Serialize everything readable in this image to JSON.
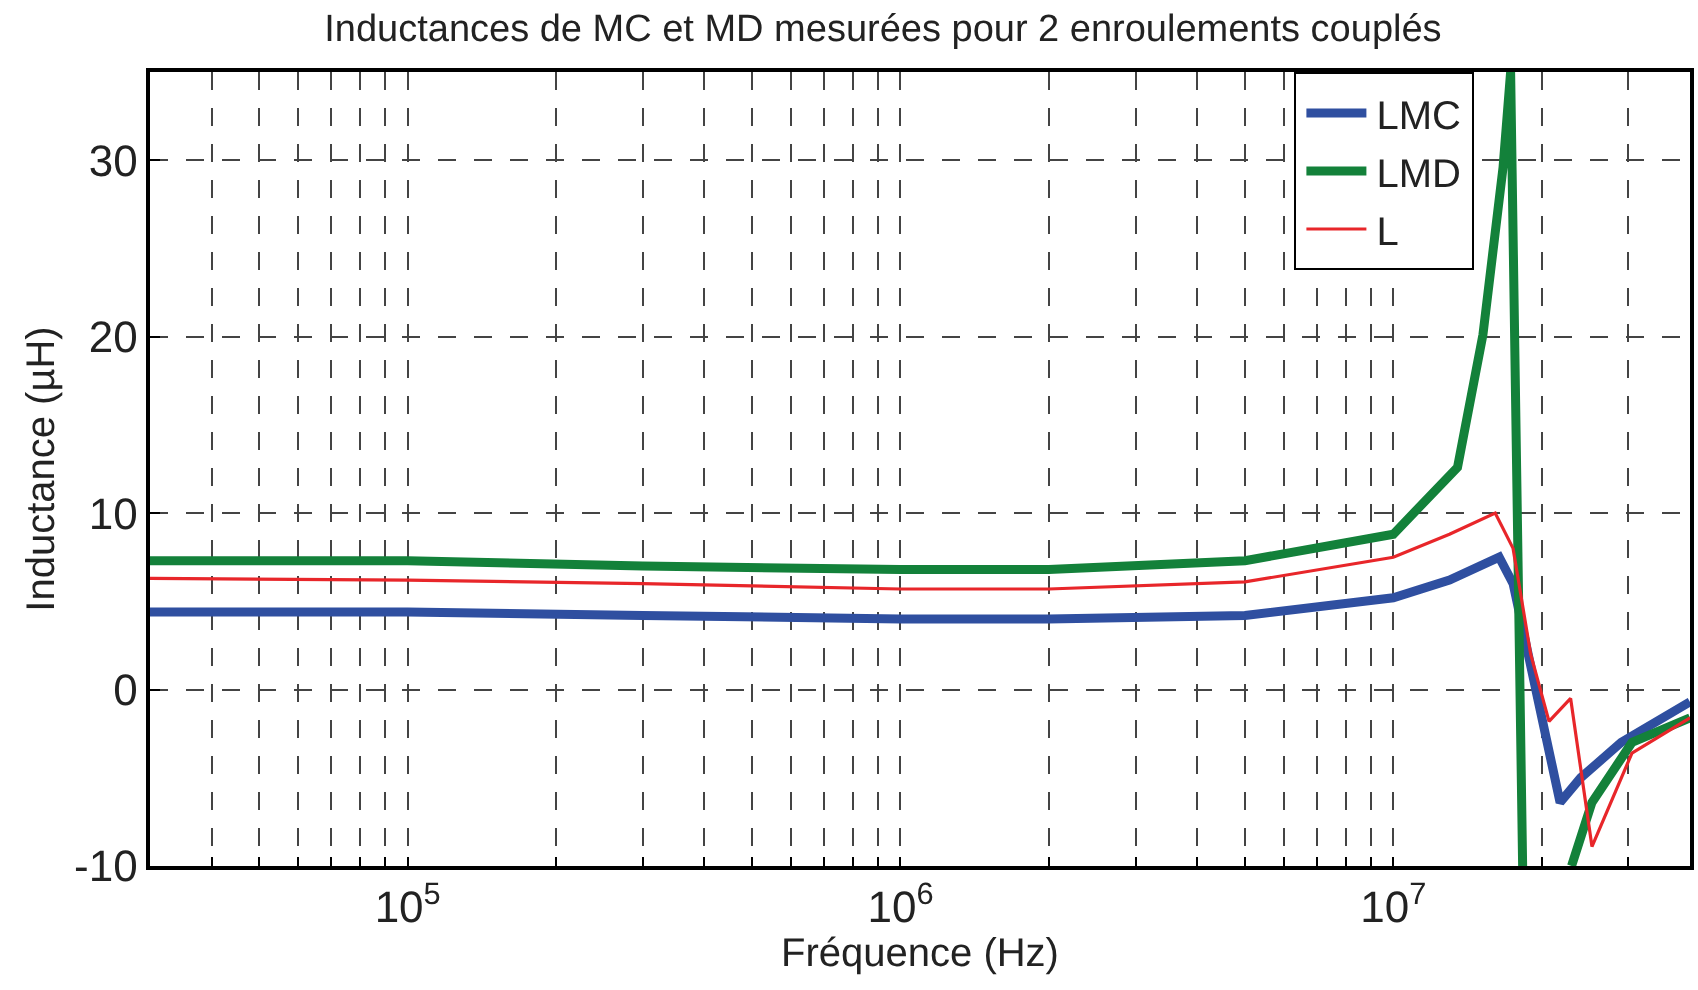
{
  "chart_data": {
    "type": "line",
    "title": "Inductances de MC et MD mesurées pour 2 enroulements couplés",
    "xlabel": "Fréquence (Hz)",
    "ylabel": "Inductance (µH)",
    "log": "x",
    "xlim": [
      30000,
      40000000
    ],
    "ylim": [
      -10,
      35
    ],
    "xticks": [
      {
        "value": 40000,
        "label": null
      },
      {
        "value": 50000,
        "label": null
      },
      {
        "value": 60000,
        "label": null
      },
      {
        "value": 70000,
        "label": null
      },
      {
        "value": 80000,
        "label": null
      },
      {
        "value": 90000,
        "label": null
      },
      {
        "value": 100000,
        "label": "10$^{5}$"
      },
      {
        "value": 200000,
        "label": null
      },
      {
        "value": 300000,
        "label": null
      },
      {
        "value": 400000,
        "label": null
      },
      {
        "value": 500000,
        "label": null
      },
      {
        "value": 600000,
        "label": null
      },
      {
        "value": 700000,
        "label": null
      },
      {
        "value": 800000,
        "label": null
      },
      {
        "value": 900000,
        "label": null
      },
      {
        "value": 1000000,
        "label": "10$^{6}$"
      },
      {
        "value": 2000000,
        "label": null
      },
      {
        "value": 3000000,
        "label": null
      },
      {
        "value": 4000000,
        "label": null
      },
      {
        "value": 5000000,
        "label": null
      },
      {
        "value": 6000000,
        "label": null
      },
      {
        "value": 7000000,
        "label": null
      },
      {
        "value": 8000000,
        "label": null
      },
      {
        "value": 9000000,
        "label": null
      },
      {
        "value": 10000000,
        "label": "10$^{7}$"
      },
      {
        "value": 20000000,
        "label": null
      },
      {
        "value": 30000000,
        "label": null
      }
    ],
    "yticks": [
      -10,
      0,
      10,
      20,
      30
    ],
    "grid": true,
    "legend": "top right",
    "series": [
      {
        "name": "LMC",
        "color": "#2f4fa0",
        "x": [
          30000,
          100000,
          300000,
          1000000,
          2000000,
          5000000,
          10000000,
          13000000,
          16400000,
          17500000,
          19700000,
          21800000,
          24000000,
          29000000,
          40000000
        ],
        "values": [
          4.4,
          4.4,
          4.2,
          4.0,
          4.0,
          4.2,
          5.2,
          6.2,
          7.5,
          6.0,
          -0.7,
          -6.4,
          -5.0,
          -3.0,
          -0.7
        ]
      },
      {
        "name": "LMD",
        "color": "#13813a",
        "x": [
          30000,
          100000,
          300000,
          1000000,
          2000000,
          5000000,
          10000000,
          13500000,
          15200000,
          16700000,
          17300000,
          18300000,
          20000000,
          23000000,
          25300000,
          30500000,
          40000000
        ],
        "values": [
          7.3,
          7.3,
          7.0,
          6.8,
          6.8,
          7.3,
          8.8,
          12.6,
          20.1,
          29.6,
          35,
          -10,
          null,
          -10,
          -6.4,
          -3.0,
          -1.6
        ]
      },
      {
        "name": "L",
        "color": "#e8262a",
        "x": [
          30000,
          100000,
          300000,
          1000000,
          2000000,
          5000000,
          10000000,
          13000000,
          16100000,
          17500000,
          19000000,
          20700000,
          22900000,
          25300000,
          30500000,
          40000000
        ],
        "values": [
          6.3,
          6.2,
          6.0,
          5.7,
          5.7,
          6.1,
          7.5,
          8.8,
          10.0,
          8.0,
          2.0,
          -1.8,
          -0.5,
          -8.9,
          -3.6,
          -1.6
        ]
      }
    ]
  }
}
